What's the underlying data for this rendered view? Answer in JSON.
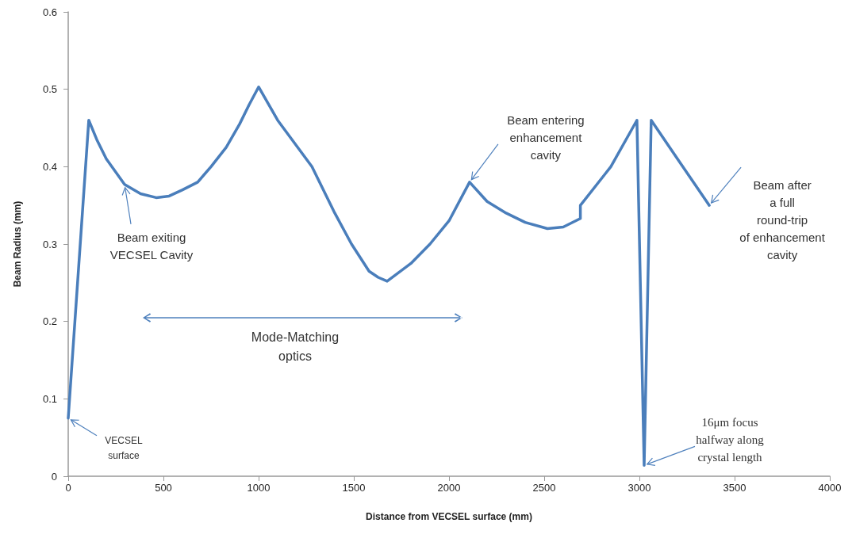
{
  "chart_data": {
    "type": "line",
    "xlabel": "Distance from VECSEL surface (mm)",
    "ylabel": "Beam Radius (mm)",
    "x": [
      0,
      108,
      150,
      200,
      296,
      380,
      462,
      530,
      600,
      680,
      750,
      830,
      900,
      950,
      1000,
      1100,
      1280,
      1400,
      1488,
      1580,
      1628,
      1675,
      1800,
      1900,
      2000,
      2108,
      2200,
      2300,
      2400,
      2517,
      2600,
      2690,
      2690,
      2850,
      2987,
      3025,
      3062,
      3200,
      3367
    ],
    "series": [
      {
        "color": "#4a7ebb",
        "values": [
          0.075,
          0.46,
          0.435,
          0.41,
          0.377,
          0.365,
          0.36,
          0.362,
          0.37,
          0.38,
          0.4,
          0.425,
          0.455,
          0.48,
          0.503,
          0.46,
          0.4,
          0.34,
          0.3,
          0.265,
          0.257,
          0.252,
          0.275,
          0.3,
          0.33,
          0.38,
          0.355,
          0.34,
          0.328,
          0.32,
          0.322,
          0.333,
          0.35,
          0.4,
          0.46,
          0.014,
          0.46,
          0.41,
          0.35
        ]
      }
    ],
    "xlim": [
      0,
      4000
    ],
    "xticks": [
      0,
      500,
      1000,
      1500,
      2000,
      2500,
      3000,
      3500,
      4000
    ],
    "ylim": [
      0,
      0.6
    ],
    "yticks": [
      0,
      0.1,
      0.2,
      0.3,
      0.4,
      0.5,
      0.6
    ],
    "grid": false,
    "marker": "none",
    "line_style": "solid",
    "annotations": [
      {
        "text": "VECSEL\nsurface",
        "x": 0,
        "y": 0.075
      },
      {
        "text": "Beam exiting\nVECSEL Cavity",
        "x": 296,
        "y": 0.377
      },
      {
        "text": "Beam entering\nenhancement\ncavity",
        "x": 2108,
        "y": 0.38
      },
      {
        "text": "Beam after\na full\nround-trip\nof enhancement\ncavity",
        "x": 3367,
        "y": 0.35
      },
      {
        "text": "16μm focus\nhalfway along\ncrystal length",
        "x": 3025,
        "y": 0.014
      },
      "Mode-Matching\noptics"
    ]
  }
}
